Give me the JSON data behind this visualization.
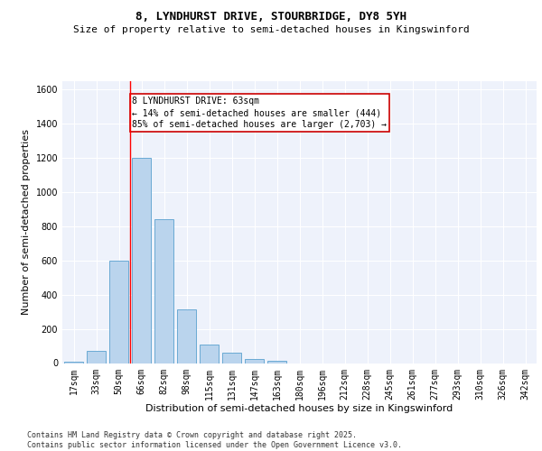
{
  "title_line1": "8, LYNDHURST DRIVE, STOURBRIDGE, DY8 5YH",
  "title_line2": "Size of property relative to semi-detached houses in Kingswinford",
  "xlabel": "Distribution of semi-detached houses by size in Kingswinford",
  "ylabel": "Number of semi-detached properties",
  "categories": [
    "17sqm",
    "33sqm",
    "50sqm",
    "66sqm",
    "82sqm",
    "98sqm",
    "115sqm",
    "131sqm",
    "147sqm",
    "163sqm",
    "180sqm",
    "196sqm",
    "212sqm",
    "228sqm",
    "245sqm",
    "261sqm",
    "277sqm",
    "293sqm",
    "310sqm",
    "326sqm",
    "342sqm"
  ],
  "values": [
    10,
    70,
    600,
    1200,
    840,
    315,
    110,
    60,
    25,
    15,
    0,
    0,
    0,
    0,
    0,
    0,
    0,
    0,
    0,
    0,
    0
  ],
  "bar_color": "#bad4ed",
  "bar_edge_color": "#6aaad4",
  "red_line_x": 2.5,
  "annotation_text": "8 LYNDHURST DRIVE: 63sqm\n← 14% of semi-detached houses are smaller (444)\n85% of semi-detached houses are larger (2,703) →",
  "annotation_box_color": "#ffffff",
  "annotation_box_edge_color": "#cc0000",
  "ylim": [
    0,
    1650
  ],
  "yticks": [
    0,
    200,
    400,
    600,
    800,
    1000,
    1200,
    1400,
    1600
  ],
  "background_color": "#eef2fb",
  "grid_color": "#ffffff",
  "footer_text": "Contains HM Land Registry data © Crown copyright and database right 2025.\nContains public sector information licensed under the Open Government Licence v3.0.",
  "title_fontsize": 9,
  "subtitle_fontsize": 8,
  "axis_label_fontsize": 8,
  "tick_fontsize": 7,
  "annotation_fontsize": 7,
  "footer_fontsize": 6,
  "ylabel_fontsize": 8
}
